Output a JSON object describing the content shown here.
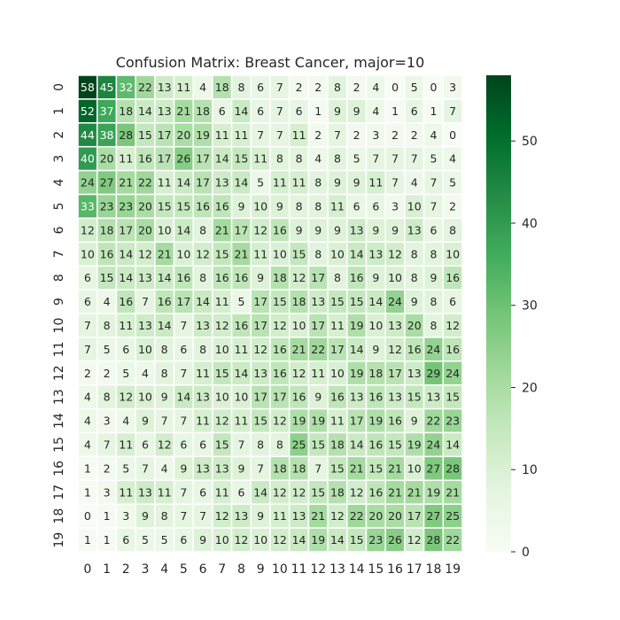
{
  "chart_data": {
    "type": "heatmap",
    "title": "Confusion Matrix: Breast Cancer, major=10",
    "xlabel": "",
    "ylabel": "",
    "x_tick_labels": [
      "0",
      "1",
      "2",
      "3",
      "4",
      "5",
      "6",
      "7",
      "8",
      "9",
      "10",
      "11",
      "12",
      "13",
      "14",
      "15",
      "16",
      "17",
      "18",
      "19"
    ],
    "y_tick_labels": [
      "0",
      "1",
      "2",
      "3",
      "4",
      "5",
      "6",
      "7",
      "8",
      "9",
      "10",
      "11",
      "12",
      "13",
      "14",
      "15",
      "16",
      "17",
      "18",
      "19"
    ],
    "matrix": [
      [
        58,
        45,
        32,
        22,
        13,
        11,
        4,
        18,
        8,
        6,
        7,
        2,
        2,
        8,
        2,
        4,
        0,
        5,
        0,
        3
      ],
      [
        52,
        37,
        18,
        14,
        13,
        21,
        18,
        6,
        14,
        6,
        7,
        6,
        1,
        9,
        9,
        4,
        1,
        6,
        1,
        7
      ],
      [
        44,
        38,
        28,
        15,
        17,
        20,
        19,
        11,
        11,
        7,
        7,
        11,
        2,
        7,
        2,
        3,
        2,
        2,
        4,
        0
      ],
      [
        40,
        20,
        11,
        16,
        17,
        26,
        17,
        14,
        15,
        11,
        8,
        8,
        4,
        8,
        5,
        7,
        7,
        7,
        5,
        4
      ],
      [
        24,
        27,
        21,
        22,
        11,
        14,
        17,
        13,
        14,
        5,
        11,
        11,
        8,
        9,
        9,
        11,
        7,
        4,
        7,
        5
      ],
      [
        33,
        23,
        23,
        20,
        15,
        15,
        16,
        16,
        9,
        10,
        9,
        8,
        8,
        11,
        6,
        6,
        3,
        10,
        7,
        2
      ],
      [
        12,
        18,
        17,
        20,
        10,
        14,
        8,
        21,
        17,
        12,
        16,
        9,
        9,
        9,
        13,
        9,
        9,
        13,
        6,
        8
      ],
      [
        10,
        16,
        14,
        12,
        21,
        10,
        12,
        15,
        21,
        11,
        10,
        15,
        8,
        10,
        14,
        13,
        12,
        8,
        8,
        10
      ],
      [
        6,
        15,
        14,
        13,
        14,
        16,
        8,
        16,
        16,
        9,
        18,
        12,
        17,
        8,
        16,
        9,
        10,
        8,
        9,
        16
      ],
      [
        6,
        4,
        16,
        7,
        16,
        17,
        14,
        11,
        5,
        17,
        15,
        18,
        13,
        15,
        15,
        14,
        24,
        9,
        8,
        6
      ],
      [
        7,
        8,
        11,
        13,
        14,
        7,
        13,
        12,
        16,
        17,
        12,
        10,
        17,
        11,
        19,
        10,
        13,
        20,
        8,
        12
      ],
      [
        7,
        5,
        6,
        10,
        8,
        6,
        8,
        10,
        11,
        12,
        16,
        21,
        22,
        17,
        14,
        9,
        12,
        16,
        24,
        16
      ],
      [
        2,
        2,
        5,
        4,
        8,
        7,
        11,
        15,
        14,
        13,
        16,
        12,
        11,
        10,
        19,
        18,
        17,
        13,
        29,
        24
      ],
      [
        4,
        8,
        12,
        10,
        9,
        14,
        13,
        10,
        10,
        17,
        17,
        16,
        9,
        16,
        13,
        16,
        13,
        15,
        13,
        15
      ],
      [
        4,
        3,
        4,
        9,
        7,
        7,
        11,
        12,
        11,
        15,
        12,
        19,
        19,
        11,
        17,
        19,
        16,
        9,
        22,
        23
      ],
      [
        4,
        7,
        11,
        6,
        12,
        6,
        6,
        15,
        7,
        8,
        8,
        25,
        15,
        18,
        14,
        16,
        15,
        19,
        24,
        14
      ],
      [
        1,
        2,
        5,
        7,
        4,
        9,
        13,
        13,
        9,
        7,
        18,
        18,
        7,
        15,
        21,
        15,
        21,
        10,
        27,
        28
      ],
      [
        1,
        3,
        11,
        13,
        11,
        7,
        6,
        11,
        6,
        14,
        12,
        12,
        15,
        18,
        12,
        16,
        21,
        21,
        19,
        21
      ],
      [
        0,
        1,
        3,
        9,
        8,
        7,
        7,
        12,
        13,
        9,
        11,
        13,
        21,
        12,
        22,
        20,
        20,
        17,
        27,
        25
      ],
      [
        1,
        1,
        6,
        5,
        5,
        6,
        9,
        10,
        12,
        10,
        12,
        14,
        19,
        14,
        15,
        23,
        26,
        12,
        28,
        22
      ]
    ],
    "colormap": "Greens",
    "vmin": 0,
    "vmax": 58,
    "colorbar_ticks": [
      0,
      10,
      20,
      30,
      40,
      50
    ],
    "annotations": true
  },
  "colors": {
    "low": "#f7fcf5",
    "high": "#00441b",
    "text_dark": "#262626",
    "text_light": "#ffffff",
    "cell_border": "#ffffff"
  }
}
